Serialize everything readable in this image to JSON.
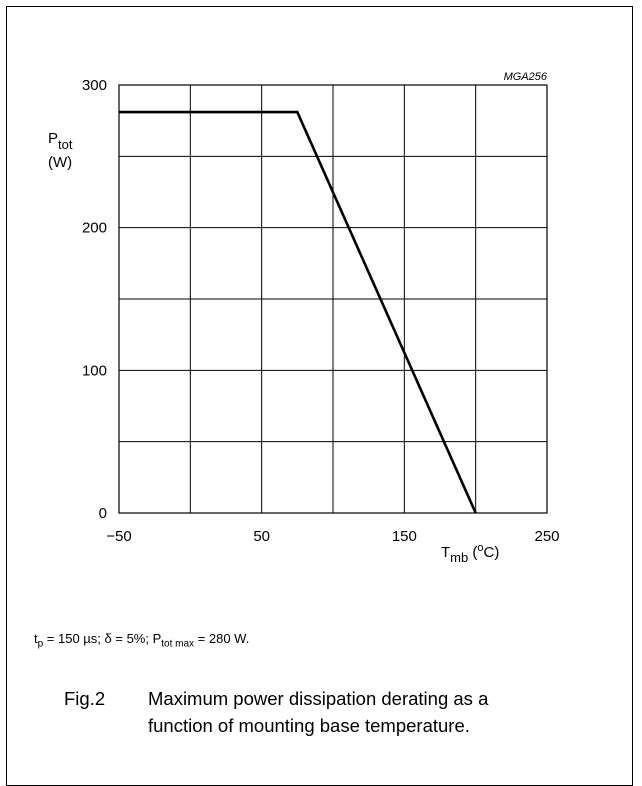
{
  "chart_data": {
    "type": "line",
    "code": "MGA256",
    "ylabel": {
      "symbol": "P",
      "sub": "tot",
      "unit": "(W)"
    },
    "xlabel": {
      "symbol": "T",
      "sub": "mb",
      "unit_open": " (",
      "unit_sup": "o",
      "unit_close": "C)"
    },
    "xlim": [
      -50,
      250
    ],
    "ylim": [
      0,
      300
    ],
    "x_ticks": [
      -50,
      50,
      150,
      250
    ],
    "x_tick_labels": [
      "−50",
      "50",
      "150",
      "250"
    ],
    "y_ticks": [
      0,
      100,
      200,
      300
    ],
    "y_tick_labels": [
      "0",
      "100",
      "200",
      "300"
    ],
    "x_grid": [
      -50,
      0,
      50,
      100,
      150,
      200,
      250
    ],
    "y_grid": [
      0,
      50,
      100,
      150,
      200,
      250,
      300
    ],
    "grid": true,
    "series": [
      {
        "x": [
          -50,
          75,
          200
        ],
        "y": [
          281,
          281,
          0
        ]
      }
    ]
  },
  "note": {
    "t": "t",
    "t_sub": "p",
    "a": " = 150 µs; δ = 5%; P",
    "p_sub": "tot max",
    "b": " = 280 W."
  },
  "caption": {
    "fig": "Fig.2",
    "line1": "Maximum power dissipation derating as a",
    "line2": "function of mounting base temperature."
  }
}
